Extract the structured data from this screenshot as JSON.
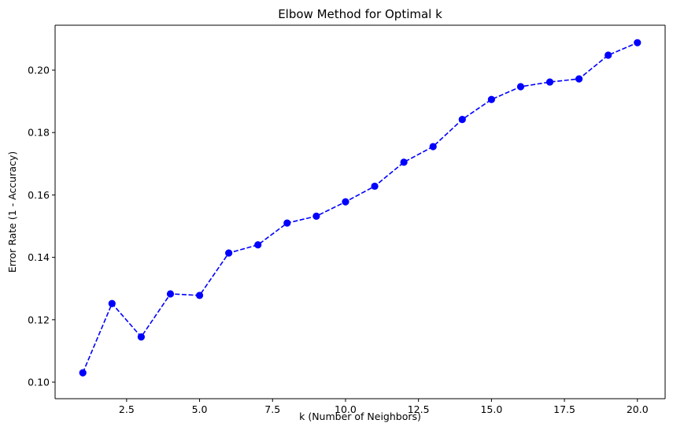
{
  "chart_data": {
    "type": "line",
    "title": "Elbow Method for Optimal k",
    "xlabel": "k (Number of Neighbors)",
    "ylabel": "Error Rate (1 - Accuracy)",
    "xlim": [
      0.05,
      20.95
    ],
    "ylim": [
      0.0947,
      0.2144
    ],
    "xticks": [
      2.5,
      5.0,
      7.5,
      10.0,
      12.5,
      15.0,
      17.5,
      20.0
    ],
    "xtick_labels": [
      "2.5",
      "5.0",
      "7.5",
      "10.0",
      "12.5",
      "15.0",
      "17.5",
      "20.0"
    ],
    "yticks": [
      0.1,
      0.12,
      0.14,
      0.16,
      0.18,
      0.2
    ],
    "ytick_labels": [
      "0.10",
      "0.12",
      "0.14",
      "0.16",
      "0.18",
      "0.20"
    ],
    "grid": false,
    "legend": false,
    "series": [
      {
        "color": "#0000ff",
        "linestyle": "dashed",
        "marker": "circle",
        "x": [
          1,
          2,
          3,
          4,
          5,
          6,
          7,
          8,
          9,
          10,
          11,
          12,
          13,
          14,
          15,
          16,
          17,
          18,
          19,
          20
        ],
        "y": [
          0.103,
          0.1252,
          0.1145,
          0.1283,
          0.1278,
          0.1414,
          0.144,
          0.151,
          0.1532,
          0.1578,
          0.1628,
          0.1705,
          0.1755,
          0.1842,
          0.1906,
          0.1947,
          0.1962,
          0.1972,
          0.2048,
          0.2088
        ]
      }
    ]
  }
}
